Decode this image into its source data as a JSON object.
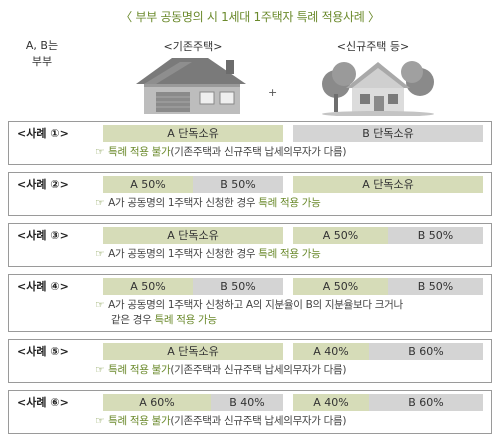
{
  "title": "〈 부부 공동명의 시 1세대 1주택자 특례 적용사례 〉",
  "owners_label_line1": "A, B는",
  "owners_label_line2": "부부",
  "existing_label": "<기존주택>",
  "new_label": "<신규주택 등>",
  "plus": "+",
  "hand_icon": "☞",
  "cases": [
    {
      "name": "<사례 ①>",
      "cells": [
        "A 단독소유",
        "B 단독소유"
      ],
      "note_hl": "특례 적용 불가",
      "note_rest": "(기존주택과 신규주택 납세의무자가 다름)"
    },
    {
      "name": "<사례 ②>",
      "cells": [
        "A 50%",
        "B 50%",
        "A 단독소유"
      ],
      "note_pre": "A가 공동명의 1주택자 신청한 경우 ",
      "note_hl": "특례 적용 가능"
    },
    {
      "name": "<사례 ③>",
      "cells": [
        "A 단독소유",
        "A 50%",
        "B 50%"
      ],
      "note_pre": "A가 공동명의 1주택자 신청한 경우 ",
      "note_hl": "특례 적용 가능"
    },
    {
      "name": "<사례 ④>",
      "cells": [
        "A 50%",
        "B 50%",
        "A 50%",
        "B 50%"
      ],
      "note_line1": "A가 공동명의 1주택자 신청하고 A의 지분율이 B의 지분율보다 크거나",
      "note_line2_pre": "같은 경우 ",
      "note_hl": "특례 적용 가능"
    },
    {
      "name": "<사례 ⑤>",
      "cells": [
        "A 단독소유",
        "A 40%",
        "B 60%"
      ],
      "note_hl": "특례 적용 불가",
      "note_rest": "(기존주택과 신규주택 납세의무자가 다름)"
    },
    {
      "name": "<사례 ⑥>",
      "cells": [
        "A 60%",
        "B 40%",
        "A 40%",
        "B 60%"
      ],
      "note_hl": "특례 적용 불가",
      "note_rest": "(기존주택과 신규주택 납세의무자가 다름)"
    }
  ]
}
